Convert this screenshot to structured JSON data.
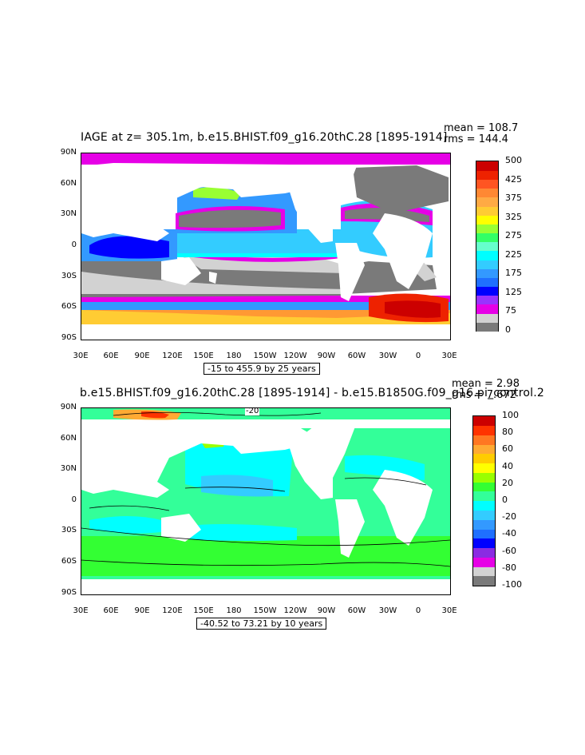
{
  "panels": [
    {
      "title": "IAGE at z= 305.1m, b.e15.BHIST.f09_g16.20thC.28 [1895-1914]",
      "mean_text": "mean = 108.7",
      "rms_text": "rms = 144.4",
      "range_text": "-15 to 455.9 by 25 years",
      "y_ticks": [
        "90N",
        "60N",
        "30N",
        "0",
        "30S",
        "60S",
        "90S"
      ],
      "x_ticks": [
        "30E",
        "60E",
        "90E",
        "120E",
        "150E",
        "180",
        "150W",
        "120W",
        "90W",
        "60W",
        "30W",
        "0",
        "30E"
      ],
      "colorbar": {
        "colors": [
          "#7a7a7a",
          "#d2d2d2",
          "#e600e6",
          "#9933ff",
          "#0000ff",
          "#1f6fff",
          "#3399ff",
          "#33ccff",
          "#00ffff",
          "#66ffcc",
          "#33ff66",
          "#99ff33",
          "#ffff00",
          "#ffcc33",
          "#ffaa44",
          "#ff8833",
          "#ff5522",
          "#ee2200",
          "#cc0000"
        ],
        "labels": [
          "0",
          "75",
          "125",
          "175",
          "225",
          "275",
          "325",
          "375",
          "425",
          "500"
        ]
      }
    },
    {
      "title": "b.e15.BHIST.f09_g16.20thC.28 [1895-1914] - b.e15.B1850G.f09_g16.pi_control.2",
      "mean_text": "mean = 2.98",
      "rms_text": "rms = 7.672",
      "range_text": "-40.52 to 73.21 by 10 years",
      "contour_label": "-20",
      "y_ticks": [
        "90N",
        "60N",
        "30N",
        "0",
        "30S",
        "60S",
        "90S"
      ],
      "x_ticks": [
        "30E",
        "60E",
        "90E",
        "120E",
        "150E",
        "180",
        "150W",
        "120W",
        "90W",
        "60W",
        "30W",
        "0",
        "30E"
      ],
      "colorbar": {
        "colors": [
          "#7a7a7a",
          "#d2d2d2",
          "#e600e6",
          "#8a2be2",
          "#0000ff",
          "#1f6fff",
          "#3399ff",
          "#33ccff",
          "#00ffff",
          "#33ff99",
          "#33ff33",
          "#99ff00",
          "#ffff00",
          "#ffcc00",
          "#ffaa33",
          "#ff7722",
          "#ff3300",
          "#cc0000"
        ],
        "labels": [
          "-100",
          "-80",
          "-60",
          "-40",
          "-20",
          "0",
          "20",
          "40",
          "60",
          "80",
          "100"
        ]
      }
    }
  ]
}
